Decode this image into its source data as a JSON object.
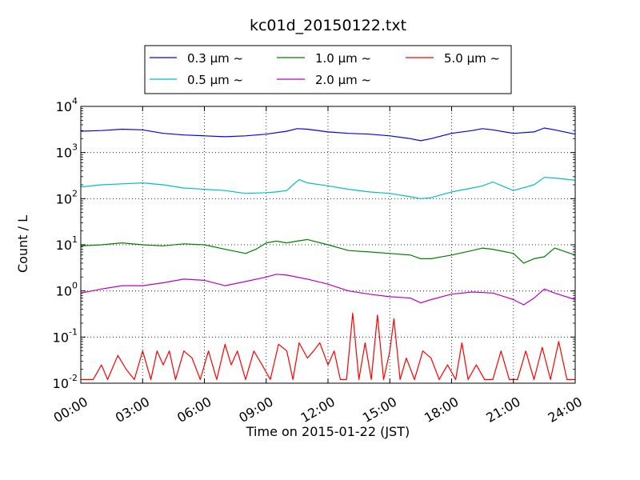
{
  "chart_data": {
    "type": "line",
    "title": "kc01d_20150122.txt",
    "xlabel": "Time on 2015-01-22 (JST)",
    "ylabel": "Count / L",
    "yscale": "log",
    "ylim": [
      0.01,
      10000
    ],
    "xlim": [
      0,
      24
    ],
    "grid": true,
    "legend_position": "top-center",
    "x_ticks": [
      {
        "value": 0,
        "label": "00:00"
      },
      {
        "value": 3,
        "label": "03:00"
      },
      {
        "value": 6,
        "label": "06:00"
      },
      {
        "value": 9,
        "label": "09:00"
      },
      {
        "value": 12,
        "label": "12:00"
      },
      {
        "value": 15,
        "label": "15:00"
      },
      {
        "value": 18,
        "label": "18:00"
      },
      {
        "value": 21,
        "label": "21:00"
      },
      {
        "value": 24,
        "label": "24:00"
      }
    ],
    "y_ticks": [
      {
        "value": 0.01,
        "base": "10",
        "exp": "-2"
      },
      {
        "value": 0.1,
        "base": "10",
        "exp": "-1"
      },
      {
        "value": 1,
        "base": "10",
        "exp": "0"
      },
      {
        "value": 10,
        "base": "10",
        "exp": "1"
      },
      {
        "value": 100,
        "base": "10",
        "exp": "2"
      },
      {
        "value": 1000,
        "base": "10",
        "exp": "3"
      },
      {
        "value": 10000,
        "base": "10",
        "exp": "4"
      }
    ],
    "series": [
      {
        "name": "0.3 μm ~",
        "color": "#0000ff",
        "x": [
          0,
          1,
          2,
          3,
          4,
          5,
          6,
          7,
          8,
          9,
          10,
          10.5,
          11,
          12,
          13,
          14,
          15,
          16,
          16.5,
          17,
          18,
          19,
          19.5,
          20,
          21,
          22,
          22.5,
          23,
          24
        ],
        "values": [
          2900,
          3000,
          3200,
          3100,
          2600,
          2400,
          2300,
          2200,
          2300,
          2500,
          2900,
          3300,
          3200,
          2800,
          2600,
          2500,
          2300,
          2000,
          1800,
          2000,
          2600,
          3000,
          3300,
          3100,
          2600,
          2800,
          3400,
          3100,
          2500
        ]
      },
      {
        "name": "0.5 μm ~",
        "color": "#00bfbf",
        "x": [
          0,
          1,
          2,
          3,
          4,
          5,
          6,
          7,
          8,
          9,
          9.5,
          10,
          10.3,
          10.6,
          11,
          12,
          13,
          14,
          15,
          16,
          16.5,
          17,
          18,
          19,
          19.5,
          20,
          21,
          22,
          22.5,
          23,
          24
        ],
        "values": [
          180,
          200,
          210,
          220,
          200,
          170,
          160,
          150,
          130,
          135,
          140,
          150,
          200,
          260,
          220,
          190,
          160,
          140,
          130,
          110,
          100,
          105,
          140,
          170,
          190,
          230,
          150,
          200,
          290,
          280,
          250
        ]
      },
      {
        "name": "1.0 μm ~",
        "color": "#008000",
        "x": [
          0,
          1,
          2,
          3,
          4,
          5,
          6,
          7,
          8,
          8.5,
          9,
          9.5,
          10,
          10.5,
          11,
          12,
          13,
          14,
          15,
          16,
          16.5,
          17,
          18,
          19,
          19.5,
          20,
          21,
          21.5,
          22,
          22.5,
          23,
          24
        ],
        "values": [
          9.5,
          10,
          11,
          10,
          9.5,
          10.5,
          10,
          8,
          6.5,
          8,
          11,
          12,
          11,
          12,
          13,
          10,
          7.5,
          7,
          6.5,
          6,
          5,
          5,
          6,
          7.5,
          8.5,
          8,
          6.5,
          4,
          5,
          5.5,
          8.5,
          6
        ]
      },
      {
        "name": "2.0 μm ~",
        "color": "#bf00bf",
        "x": [
          0,
          1,
          2,
          3,
          4,
          5,
          6,
          7,
          8,
          9,
          9.5,
          10,
          11,
          12,
          13,
          14,
          15,
          16,
          16.5,
          17,
          18,
          19,
          20,
          21,
          21.5,
          22,
          22.5,
          23,
          24
        ],
        "values": [
          0.9,
          1.1,
          1.3,
          1.3,
          1.5,
          1.8,
          1.7,
          1.3,
          1.6,
          2.0,
          2.3,
          2.2,
          1.8,
          1.4,
          1.0,
          0.85,
          0.75,
          0.7,
          0.55,
          0.65,
          0.85,
          0.95,
          0.9,
          0.65,
          0.5,
          0.7,
          1.1,
          0.9,
          0.65
        ]
      },
      {
        "name": "5.0 μm ~",
        "color": "#ff0000",
        "x": [
          0,
          0.6,
          1.0,
          1.3,
          1.8,
          2.2,
          2.6,
          3.0,
          3.4,
          3.7,
          4.0,
          4.3,
          4.6,
          5.0,
          5.4,
          5.8,
          6.2,
          6.6,
          7.0,
          7.3,
          7.6,
          8.0,
          8.4,
          8.8,
          9.2,
          9.6,
          10.0,
          10.3,
          10.6,
          11.0,
          11.3,
          11.6,
          12.0,
          12.3,
          12.6,
          12.9,
          13.2,
          13.5,
          13.8,
          14.1,
          14.4,
          14.7,
          15.0,
          15.2,
          15.5,
          15.8,
          16.2,
          16.6,
          17.0,
          17.4,
          17.8,
          18.2,
          18.5,
          18.8,
          19.2,
          19.6,
          20.0,
          20.4,
          20.8,
          21.2,
          21.6,
          22.0,
          22.4,
          22.8,
          23.2,
          23.6,
          24
        ],
        "values": [
          0.012,
          0.012,
          0.025,
          0.012,
          0.04,
          0.02,
          0.012,
          0.05,
          0.012,
          0.05,
          0.025,
          0.05,
          0.012,
          0.05,
          0.035,
          0.012,
          0.05,
          0.012,
          0.07,
          0.025,
          0.05,
          0.012,
          0.05,
          0.025,
          0.012,
          0.07,
          0.05,
          0.012,
          0.075,
          0.035,
          0.05,
          0.075,
          0.025,
          0.05,
          0.012,
          0.012,
          0.33,
          0.012,
          0.075,
          0.012,
          0.3,
          0.012,
          0.05,
          0.25,
          0.012,
          0.035,
          0.012,
          0.05,
          0.035,
          0.012,
          0.025,
          0.012,
          0.075,
          0.012,
          0.025,
          0.012,
          0.012,
          0.05,
          0.012,
          0.012,
          0.05,
          0.012,
          0.06,
          0.012,
          0.08,
          0.012,
          0.012
        ]
      }
    ]
  }
}
